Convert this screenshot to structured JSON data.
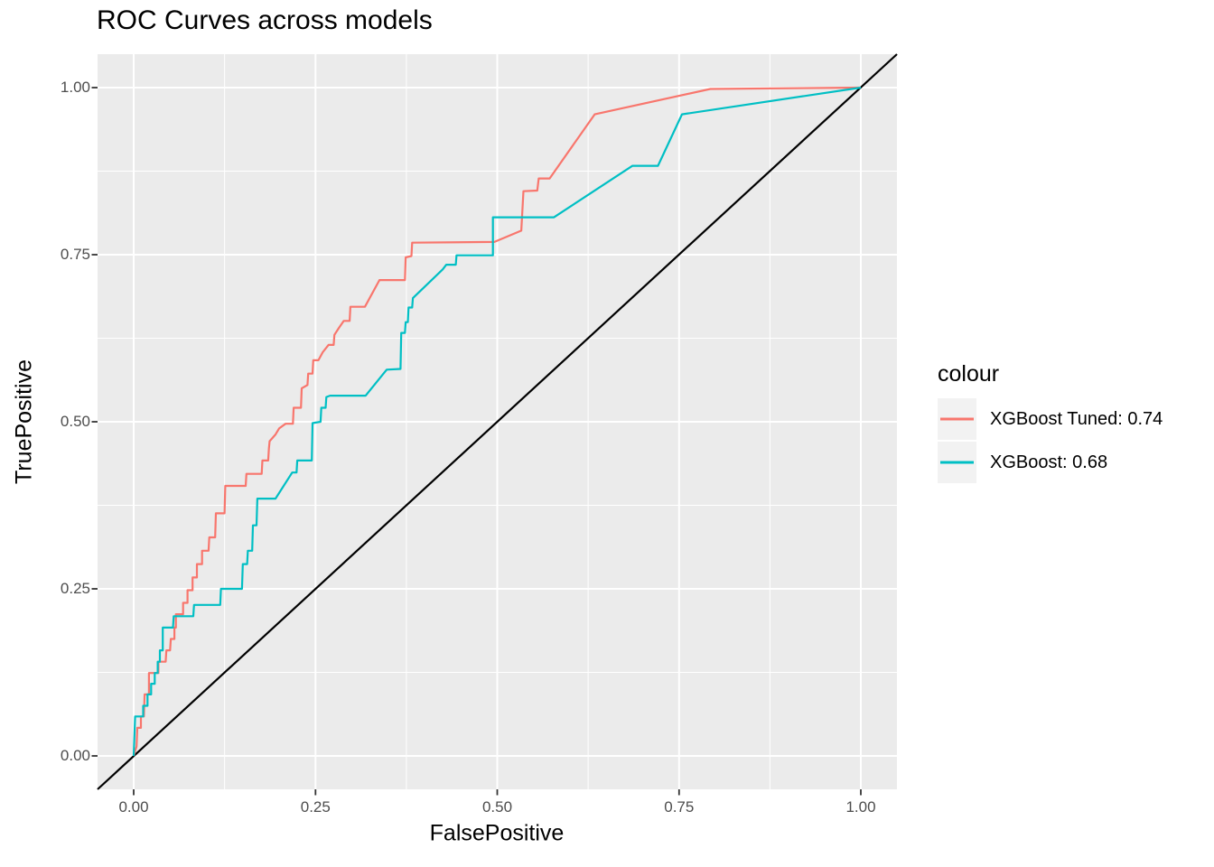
{
  "figure": {
    "title": "ROC Curves across models",
    "x_axis": {
      "label": "FalsePositive",
      "tick_labels": [
        "0.00",
        "0.25",
        "0.50",
        "0.75",
        "1.00"
      ],
      "tick_values": [
        0,
        0.25,
        0.5,
        0.75,
        1
      ],
      "minor_values": [
        0.125,
        0.375,
        0.625,
        0.875
      ]
    },
    "y_axis": {
      "label": "TruePositive",
      "tick_labels": [
        "0.00",
        "0.25",
        "0.50",
        "0.75",
        "1.00"
      ],
      "tick_values": [
        0,
        0.25,
        0.5,
        0.75,
        1
      ],
      "minor_values": [
        0.125,
        0.375,
        0.625,
        0.875
      ]
    },
    "legend": {
      "title": "colour"
    },
    "colors": {
      "panel_background": "#EBEBEB",
      "grid": "#FFFFFF",
      "tick_mark": "#333333",
      "tick_text": "#4D4D4D",
      "text": "#000000",
      "legend_key_background": "#F2F2F2",
      "reference_line": "#000000",
      "series_tuned": "#F8766D",
      "series_base": "#00BFC4"
    }
  },
  "chart_data": {
    "type": "line",
    "subtype": "roc-step-curves",
    "title": "ROC Curves across models",
    "xlabel": "FalsePositive",
    "ylabel": "TruePositive",
    "xlim": [
      -0.05,
      1.05
    ],
    "ylim": [
      -0.05,
      1.05
    ],
    "x_ticks": [
      0,
      0.25,
      0.5,
      0.75,
      1
    ],
    "y_ticks": [
      0,
      0.25,
      0.5,
      0.75,
      1
    ],
    "grid": true,
    "legend_position": "right",
    "legend_title": "colour",
    "reference_line": {
      "slope": 1,
      "intercept": 0,
      "color": "#000000",
      "description": "chance diagonal y = x"
    },
    "series": [
      {
        "name": "XGBoost Tuned",
        "auc": 0.74,
        "legend_label": "XGBoost Tuned: 0.74",
        "color": "#F8766D",
        "points": [
          [
            0.0,
            0.0
          ],
          [
            0.004,
            0.014
          ],
          [
            0.005,
            0.042
          ],
          [
            0.01,
            0.042
          ],
          [
            0.01,
            0.059
          ],
          [
            0.014,
            0.059
          ],
          [
            0.015,
            0.092
          ],
          [
            0.021,
            0.092
          ],
          [
            0.021,
            0.124
          ],
          [
            0.034,
            0.124
          ],
          [
            0.034,
            0.141
          ],
          [
            0.044,
            0.141
          ],
          [
            0.045,
            0.158
          ],
          [
            0.05,
            0.158
          ],
          [
            0.051,
            0.175
          ],
          [
            0.056,
            0.175
          ],
          [
            0.056,
            0.192
          ],
          [
            0.058,
            0.192
          ],
          [
            0.058,
            0.212
          ],
          [
            0.068,
            0.212
          ],
          [
            0.068,
            0.229
          ],
          [
            0.074,
            0.229
          ],
          [
            0.074,
            0.248
          ],
          [
            0.081,
            0.248
          ],
          [
            0.081,
            0.267
          ],
          [
            0.087,
            0.267
          ],
          [
            0.087,
            0.287
          ],
          [
            0.094,
            0.287
          ],
          [
            0.094,
            0.307
          ],
          [
            0.103,
            0.307
          ],
          [
            0.104,
            0.327
          ],
          [
            0.112,
            0.327
          ],
          [
            0.113,
            0.363
          ],
          [
            0.125,
            0.363
          ],
          [
            0.126,
            0.404
          ],
          [
            0.154,
            0.404
          ],
          [
            0.155,
            0.422
          ],
          [
            0.176,
            0.422
          ],
          [
            0.177,
            0.442
          ],
          [
            0.185,
            0.442
          ],
          [
            0.186,
            0.46
          ],
          [
            0.187,
            0.471
          ],
          [
            0.195,
            0.481
          ],
          [
            0.2,
            0.49
          ],
          [
            0.209,
            0.497
          ],
          [
            0.219,
            0.497
          ],
          [
            0.22,
            0.521
          ],
          [
            0.23,
            0.521
          ],
          [
            0.231,
            0.55
          ],
          [
            0.239,
            0.555
          ],
          [
            0.24,
            0.572
          ],
          [
            0.246,
            0.572
          ],
          [
            0.247,
            0.592
          ],
          [
            0.254,
            0.592
          ],
          [
            0.26,
            0.604
          ],
          [
            0.268,
            0.615
          ],
          [
            0.275,
            0.615
          ],
          [
            0.276,
            0.63
          ],
          [
            0.282,
            0.64
          ],
          [
            0.289,
            0.651
          ],
          [
            0.297,
            0.651
          ],
          [
            0.298,
            0.672
          ],
          [
            0.318,
            0.672
          ],
          [
            0.338,
            0.712
          ],
          [
            0.373,
            0.712
          ],
          [
            0.374,
            0.746
          ],
          [
            0.382,
            0.748
          ],
          [
            0.383,
            0.768
          ],
          [
            0.496,
            0.769
          ],
          [
            0.533,
            0.786
          ],
          [
            0.536,
            0.845
          ],
          [
            0.555,
            0.846
          ],
          [
            0.557,
            0.864
          ],
          [
            0.572,
            0.864
          ],
          [
            0.634,
            0.96
          ],
          [
            0.793,
            0.998
          ],
          [
            1.0,
            1.0
          ]
        ]
      },
      {
        "name": "XGBoost",
        "auc": 0.68,
        "legend_label": "XGBoost: 0.68",
        "color": "#00BFC4",
        "points": [
          [
            0.0,
            0.0
          ],
          [
            0.002,
            0.059
          ],
          [
            0.013,
            0.059
          ],
          [
            0.013,
            0.075
          ],
          [
            0.019,
            0.075
          ],
          [
            0.019,
            0.092
          ],
          [
            0.024,
            0.092
          ],
          [
            0.024,
            0.108
          ],
          [
            0.029,
            0.108
          ],
          [
            0.029,
            0.124
          ],
          [
            0.033,
            0.124
          ],
          [
            0.033,
            0.141
          ],
          [
            0.036,
            0.141
          ],
          [
            0.036,
            0.158
          ],
          [
            0.04,
            0.158
          ],
          [
            0.04,
            0.192
          ],
          [
            0.054,
            0.192
          ],
          [
            0.055,
            0.209
          ],
          [
            0.082,
            0.209
          ],
          [
            0.083,
            0.226
          ],
          [
            0.119,
            0.226
          ],
          [
            0.12,
            0.25
          ],
          [
            0.149,
            0.25
          ],
          [
            0.15,
            0.287
          ],
          [
            0.156,
            0.287
          ],
          [
            0.157,
            0.307
          ],
          [
            0.163,
            0.307
          ],
          [
            0.164,
            0.345
          ],
          [
            0.169,
            0.345
          ],
          [
            0.17,
            0.385
          ],
          [
            0.195,
            0.385
          ],
          [
            0.218,
            0.424
          ],
          [
            0.224,
            0.424
          ],
          [
            0.225,
            0.442
          ],
          [
            0.245,
            0.442
          ],
          [
            0.246,
            0.498
          ],
          [
            0.257,
            0.5
          ],
          [
            0.258,
            0.521
          ],
          [
            0.264,
            0.521
          ],
          [
            0.265,
            0.537
          ],
          [
            0.27,
            0.539
          ],
          [
            0.319,
            0.539
          ],
          [
            0.348,
            0.578
          ],
          [
            0.367,
            0.579
          ],
          [
            0.368,
            0.633
          ],
          [
            0.373,
            0.633
          ],
          [
            0.374,
            0.649
          ],
          [
            0.377,
            0.649
          ],
          [
            0.378,
            0.671
          ],
          [
            0.383,
            0.671
          ],
          [
            0.384,
            0.685
          ],
          [
            0.425,
            0.728
          ],
          [
            0.43,
            0.735
          ],
          [
            0.443,
            0.735
          ],
          [
            0.444,
            0.749
          ],
          [
            0.494,
            0.749
          ],
          [
            0.494,
            0.806
          ],
          [
            0.578,
            0.806
          ],
          [
            0.686,
            0.883
          ],
          [
            0.721,
            0.883
          ],
          [
            0.754,
            0.96
          ],
          [
            1.0,
            1.0
          ]
        ]
      }
    ]
  }
}
